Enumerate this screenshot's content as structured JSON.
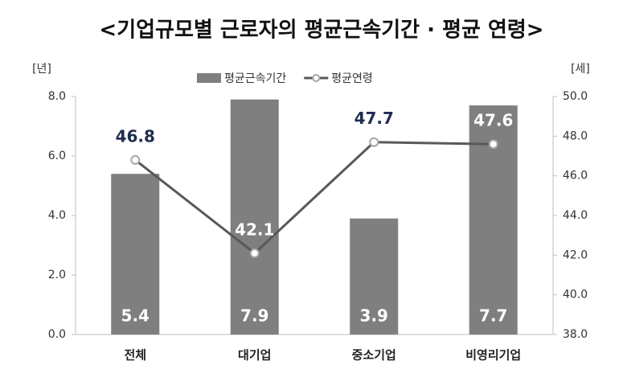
{
  "chart_data": {
    "type": "combo",
    "title": "<기업규모별 근로자의 평균근속기간 · 평균 연령>",
    "y_label": "[년]",
    "y2_label": "[세]",
    "categories": [
      "전체",
      "대기업",
      "중소기업",
      "비영리기업"
    ],
    "series": [
      {
        "name": "평균근속기간",
        "type": "bar",
        "color": "#7f7f7f",
        "values": [
          5.4,
          7.9,
          3.9,
          7.7
        ]
      },
      {
        "name": "평균연령",
        "type": "line",
        "axis": "y2",
        "color": "#595959",
        "values": [
          46.8,
          42.1,
          47.7,
          47.6
        ]
      }
    ],
    "ylim": [
      0,
      8
    ],
    "yticks": [
      {
        "value": 0,
        "label": "0.0"
      },
      {
        "value": 2,
        "label": "2.0"
      },
      {
        "value": 4,
        "label": "4.0"
      },
      {
        "value": 6,
        "label": "6.0"
      },
      {
        "value": 8,
        "label": "8.0"
      }
    ],
    "y2lim": [
      38,
      50
    ],
    "y2ticks": [
      {
        "value": 38,
        "label": "38.0"
      },
      {
        "value": 40,
        "label": "40.0"
      },
      {
        "value": 42,
        "label": "42.0"
      },
      {
        "value": 44,
        "label": "44.0"
      },
      {
        "value": 46,
        "label": "46.0"
      },
      {
        "value": 48,
        "label": "48.0"
      },
      {
        "value": 50,
        "label": "50.0"
      }
    ],
    "legend": "top"
  }
}
